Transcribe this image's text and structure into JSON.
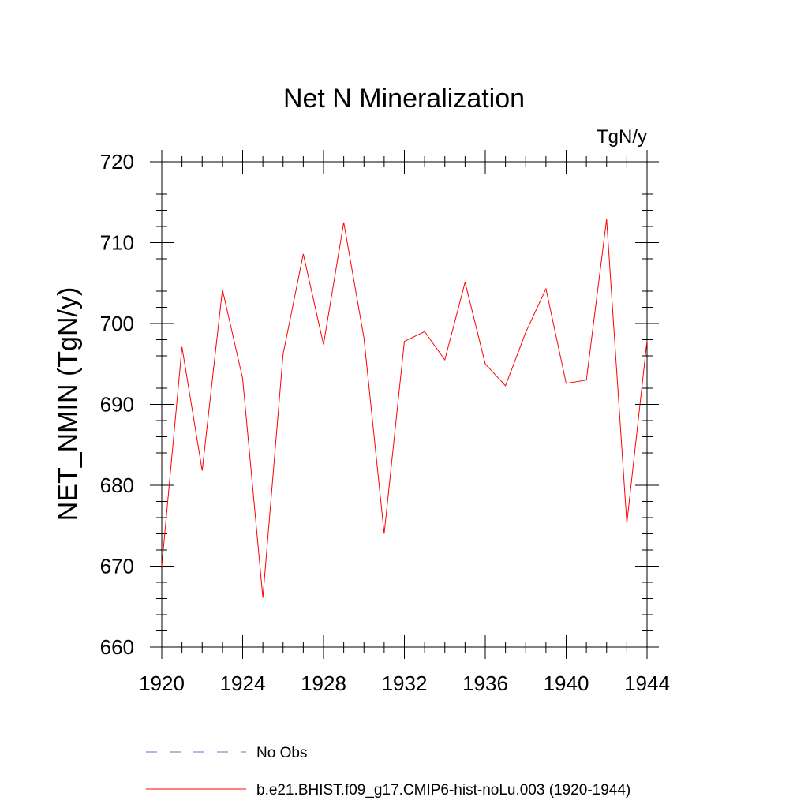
{
  "chart_data": {
    "type": "line",
    "title": "Net N Mineralization",
    "units_label": "TgN/y",
    "xlabel": "",
    "ylabel": "NET_NMIN  (TgN/y)",
    "xlim": [
      1920,
      1944
    ],
    "ylim": [
      660,
      720
    ],
    "x_major_ticks": [
      1920,
      1924,
      1928,
      1932,
      1936,
      1940,
      1944
    ],
    "x_tick_labels": [
      "1920",
      "1924",
      "1928",
      "1932",
      "1936",
      "1940",
      "1944"
    ],
    "y_major_ticks": [
      660,
      670,
      680,
      690,
      700,
      710,
      720
    ],
    "y_tick_labels": [
      "660",
      "670",
      "680",
      "690",
      "700",
      "710",
      "720"
    ],
    "grid": false,
    "legend_position": "bottom",
    "x": [
      1920,
      1921,
      1922,
      1923,
      1924,
      1925,
      1926,
      1927,
      1928,
      1929,
      1930,
      1931,
      1932,
      1933,
      1934,
      1935,
      1936,
      1937,
      1938,
      1939,
      1940,
      1941,
      1942,
      1943,
      1944
    ],
    "series": [
      {
        "name": "b.e21.BHIST.f09_g17.CMIP6-hist-noLu.003 (1920-1944)",
        "color": "#ff0000",
        "style": "solid",
        "values": [
          670.0,
          697.1,
          681.8,
          704.2,
          693.2,
          666.1,
          696.2,
          708.6,
          697.4,
          712.5,
          698.2,
          674.0,
          697.8,
          699.0,
          695.5,
          705.1,
          695.0,
          692.3,
          698.9,
          704.3,
          692.6,
          693.0,
          712.9,
          675.3,
          697.9
        ]
      }
    ],
    "legend": [
      {
        "label": "No Obs",
        "color": "#6a6ad0",
        "style": "dashed"
      },
      {
        "label": "b.e21.BHIST.f09_g17.CMIP6-hist-noLu.003 (1920-1944)",
        "color": "#ff0000",
        "style": "solid"
      }
    ]
  }
}
